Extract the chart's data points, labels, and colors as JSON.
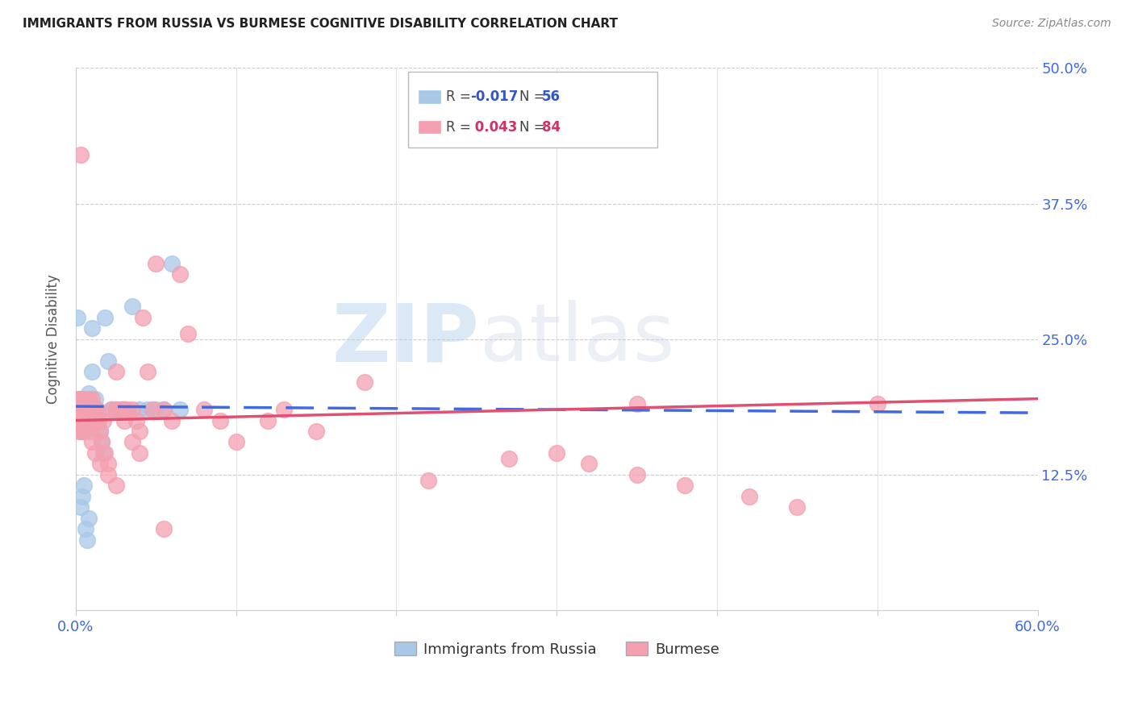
{
  "title": "IMMIGRANTS FROM RUSSIA VS BURMESE COGNITIVE DISABILITY CORRELATION CHART",
  "source": "Source: ZipAtlas.com",
  "ylabel": "Cognitive Disability",
  "xlim": [
    0.0,
    0.6
  ],
  "ylim": [
    0.0,
    0.5
  ],
  "xticks": [
    0.0,
    0.1,
    0.2,
    0.3,
    0.4,
    0.5,
    0.6
  ],
  "xticklabels": [
    "0.0%",
    "",
    "",
    "",
    "",
    "",
    "60.0%"
  ],
  "yticks": [
    0.0,
    0.125,
    0.25,
    0.375,
    0.5
  ],
  "yticklabels": [
    "",
    "12.5%",
    "25.0%",
    "37.5%",
    "50.0%"
  ],
  "blue_color": "#a8c8e8",
  "pink_color": "#f4a0b0",
  "blue_line_color": "#4169e1",
  "pink_line_color": "#e05070",
  "blue_r": -0.017,
  "pink_r": 0.043,
  "blue_n": 56,
  "pink_n": 84,
  "watermark": "ZIPatlas",
  "russia_x": [
    0.001,
    0.001,
    0.001,
    0.002,
    0.002,
    0.002,
    0.002,
    0.002,
    0.003,
    0.003,
    0.003,
    0.003,
    0.004,
    0.004,
    0.004,
    0.005,
    0.005,
    0.005,
    0.005,
    0.006,
    0.006,
    0.007,
    0.007,
    0.007,
    0.008,
    0.008,
    0.009,
    0.009,
    0.01,
    0.01,
    0.011,
    0.012,
    0.013,
    0.014,
    0.015,
    0.016,
    0.017,
    0.018,
    0.02,
    0.022,
    0.025,
    0.028,
    0.03,
    0.035,
    0.04,
    0.045,
    0.05,
    0.055,
    0.06,
    0.065,
    0.008,
    0.003,
    0.004,
    0.005,
    0.006,
    0.007
  ],
  "russia_y": [
    0.27,
    0.19,
    0.195,
    0.185,
    0.18,
    0.19,
    0.17,
    0.175,
    0.195,
    0.185,
    0.175,
    0.165,
    0.19,
    0.18,
    0.17,
    0.195,
    0.185,
    0.175,
    0.165,
    0.18,
    0.175,
    0.19,
    0.185,
    0.175,
    0.195,
    0.2,
    0.185,
    0.175,
    0.22,
    0.26,
    0.185,
    0.195,
    0.185,
    0.175,
    0.165,
    0.155,
    0.145,
    0.27,
    0.23,
    0.185,
    0.185,
    0.185,
    0.185,
    0.28,
    0.185,
    0.185,
    0.185,
    0.185,
    0.32,
    0.185,
    0.085,
    0.095,
    0.105,
    0.115,
    0.075,
    0.065
  ],
  "burmese_x": [
    0.001,
    0.001,
    0.001,
    0.002,
    0.002,
    0.002,
    0.002,
    0.003,
    0.003,
    0.003,
    0.004,
    0.004,
    0.004,
    0.005,
    0.005,
    0.005,
    0.006,
    0.006,
    0.007,
    0.007,
    0.007,
    0.008,
    0.008,
    0.009,
    0.009,
    0.01,
    0.01,
    0.011,
    0.012,
    0.013,
    0.014,
    0.015,
    0.016,
    0.017,
    0.018,
    0.02,
    0.022,
    0.025,
    0.025,
    0.028,
    0.03,
    0.03,
    0.032,
    0.035,
    0.038,
    0.04,
    0.042,
    0.045,
    0.048,
    0.05,
    0.055,
    0.06,
    0.065,
    0.07,
    0.08,
    0.09,
    0.1,
    0.12,
    0.13,
    0.15,
    0.18,
    0.22,
    0.27,
    0.3,
    0.32,
    0.35,
    0.38,
    0.42,
    0.45,
    0.5,
    0.003,
    0.005,
    0.007,
    0.009,
    0.01,
    0.012,
    0.015,
    0.02,
    0.025,
    0.03,
    0.035,
    0.04,
    0.055,
    0.35
  ],
  "burmese_y": [
    0.19,
    0.185,
    0.175,
    0.195,
    0.185,
    0.175,
    0.165,
    0.195,
    0.185,
    0.175,
    0.185,
    0.175,
    0.165,
    0.195,
    0.185,
    0.175,
    0.185,
    0.175,
    0.195,
    0.185,
    0.175,
    0.195,
    0.185,
    0.185,
    0.175,
    0.195,
    0.185,
    0.185,
    0.175,
    0.185,
    0.175,
    0.165,
    0.155,
    0.175,
    0.145,
    0.135,
    0.185,
    0.22,
    0.185,
    0.185,
    0.185,
    0.175,
    0.185,
    0.185,
    0.175,
    0.165,
    0.27,
    0.22,
    0.185,
    0.32,
    0.185,
    0.175,
    0.31,
    0.255,
    0.185,
    0.175,
    0.155,
    0.175,
    0.185,
    0.165,
    0.21,
    0.12,
    0.14,
    0.145,
    0.135,
    0.125,
    0.115,
    0.105,
    0.095,
    0.19,
    0.42,
    0.185,
    0.175,
    0.165,
    0.155,
    0.145,
    0.135,
    0.125,
    0.115,
    0.185,
    0.155,
    0.145,
    0.075,
    0.19
  ],
  "blue_trend_start_y": 0.188,
  "blue_trend_end_y": 0.182,
  "pink_trend_start_y": 0.175,
  "pink_trend_end_y": 0.195
}
